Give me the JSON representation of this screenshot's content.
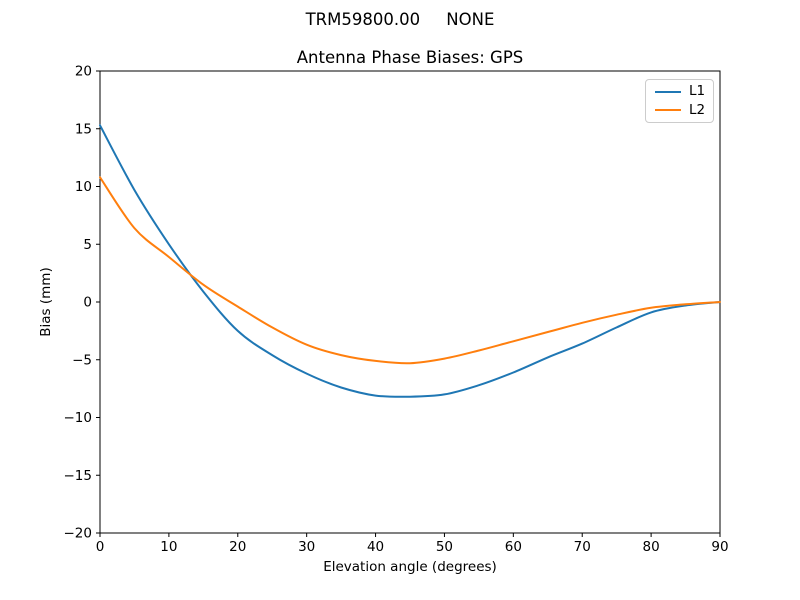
{
  "chart_data": {
    "type": "line",
    "suptitle": "TRM59800.00     NONE",
    "title": "Antenna Phase Biases: GPS",
    "xlabel": "Elevation angle (degrees)",
    "ylabel": "Bias (mm)",
    "xlim": [
      0,
      90
    ],
    "ylim": [
      -20,
      20
    ],
    "xticks": [
      0,
      10,
      20,
      30,
      40,
      50,
      60,
      70,
      80,
      90
    ],
    "yticks": [
      -20,
      -15,
      -10,
      -5,
      0,
      5,
      10,
      15,
      20
    ],
    "grid": false,
    "background": "#ffffff",
    "axes_color": "#000000",
    "legend": {
      "position": "upper right",
      "border_color": "#cccccc"
    },
    "x": [
      0,
      5,
      10,
      15,
      20,
      25,
      30,
      35,
      40,
      45,
      50,
      55,
      60,
      65,
      70,
      75,
      80,
      85,
      90
    ],
    "series": [
      {
        "name": "L1",
        "color": "#1f77b4",
        "values": [
          15.3,
          9.7,
          5.0,
          0.9,
          -2.5,
          -4.6,
          -6.2,
          -7.4,
          -8.1,
          -8.2,
          -8.0,
          -7.2,
          -6.1,
          -4.8,
          -3.6,
          -2.2,
          -0.9,
          -0.3,
          0.0
        ]
      },
      {
        "name": "L2",
        "color": "#ff7f0e",
        "values": [
          10.8,
          6.4,
          3.9,
          1.5,
          -0.4,
          -2.2,
          -3.7,
          -4.6,
          -5.1,
          -5.3,
          -4.9,
          -4.2,
          -3.4,
          -2.6,
          -1.8,
          -1.1,
          -0.5,
          -0.2,
          0.0
        ]
      }
    ]
  }
}
